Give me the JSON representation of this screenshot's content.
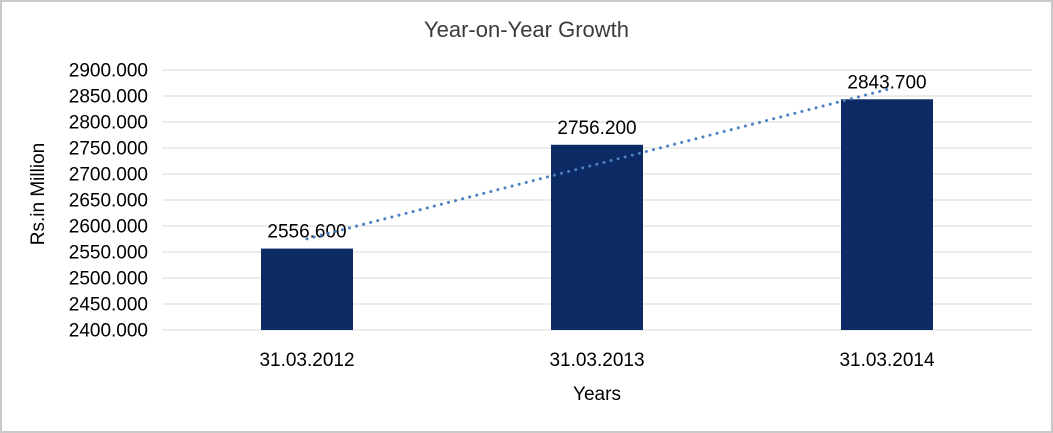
{
  "chart_data": {
    "type": "bar",
    "title": "Year-on-Year Growth",
    "xlabel": "Years",
    "ylabel": "Rs.in Million",
    "categories": [
      "31.03.2012",
      "31.03.2013",
      "31.03.2014"
    ],
    "values": [
      2556.6,
      2756.2,
      2843.7
    ],
    "data_labels": [
      "2556.600",
      "2756.200",
      "2843.700"
    ],
    "ylim": [
      2400,
      2900
    ],
    "yticks": [
      {
        "value": 2400,
        "label": "2400.000"
      },
      {
        "value": 2450,
        "label": "2450.000"
      },
      {
        "value": 2500,
        "label": "2500.000"
      },
      {
        "value": 2550,
        "label": "2550.000"
      },
      {
        "value": 2600,
        "label": "2600.000"
      },
      {
        "value": 2650,
        "label": "2650.000"
      },
      {
        "value": 2700,
        "label": "2700.000"
      },
      {
        "value": 2750,
        "label": "2750.000"
      },
      {
        "value": 2800,
        "label": "2800.000"
      },
      {
        "value": 2850,
        "label": "2850.000"
      },
      {
        "value": 2900,
        "label": "2900.000"
      }
    ],
    "grid": true,
    "legend": false,
    "trendline": {
      "type": "linear",
      "style": "dotted"
    },
    "colors": {
      "bar": "#0c2a63",
      "trendline": "#4a80c2",
      "gridline": "#d9d9d9",
      "text": "#000000",
      "title": "#3b3b3b",
      "border": "#c9c9c9"
    }
  }
}
